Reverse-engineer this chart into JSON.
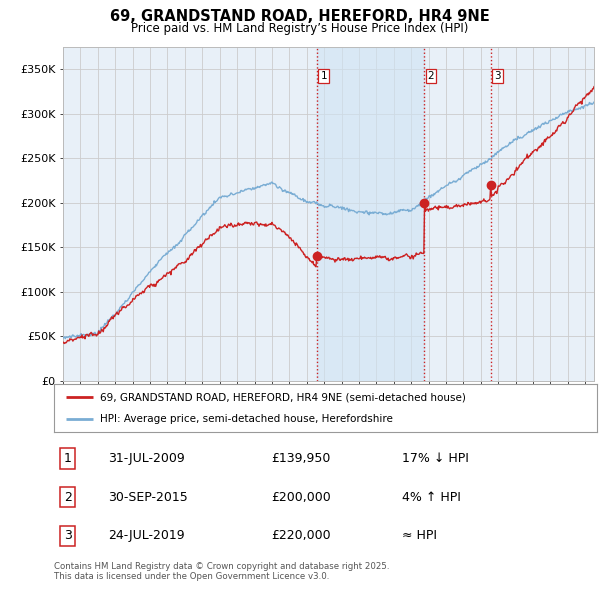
{
  "title": "69, GRANDSTAND ROAD, HEREFORD, HR4 9NE",
  "subtitle": "Price paid vs. HM Land Registry’s House Price Index (HPI)",
  "ylabel_ticks": [
    "£0",
    "£50K",
    "£100K",
    "£150K",
    "£200K",
    "£250K",
    "£300K",
    "£350K"
  ],
  "ytick_values": [
    0,
    50000,
    100000,
    150000,
    200000,
    250000,
    300000,
    350000
  ],
  "ylim": [
    0,
    375000
  ],
  "xlim_start": 1995.0,
  "xlim_end": 2025.5,
  "hpi_color": "#7aadd4",
  "price_color": "#cc2222",
  "vline_color": "#cc2222",
  "transaction_vlines": [
    2009.58,
    2015.75,
    2019.56
  ],
  "transaction_labels": [
    "1",
    "2",
    "3"
  ],
  "transaction_prices": [
    139950,
    200000,
    220000
  ],
  "transaction_dates": [
    "31-JUL-2009",
    "30-SEP-2015",
    "24-JUL-2019"
  ],
  "transaction_hpi_diff": [
    "17% ↓ HPI",
    "4% ↑ HPI",
    "≈ HPI"
  ],
  "legend_line1": "69, GRANDSTAND ROAD, HEREFORD, HR4 9NE (semi-detached house)",
  "legend_line2": "HPI: Average price, semi-detached house, Herefordshire",
  "footnote": "Contains HM Land Registry data © Crown copyright and database right 2025.\nThis data is licensed under the Open Government Licence v3.0.",
  "background_color": "#ffffff",
  "grid_color": "#cccccc",
  "plot_bg_color": "#e8f0f8",
  "shade_color": "#d0e4f4"
}
